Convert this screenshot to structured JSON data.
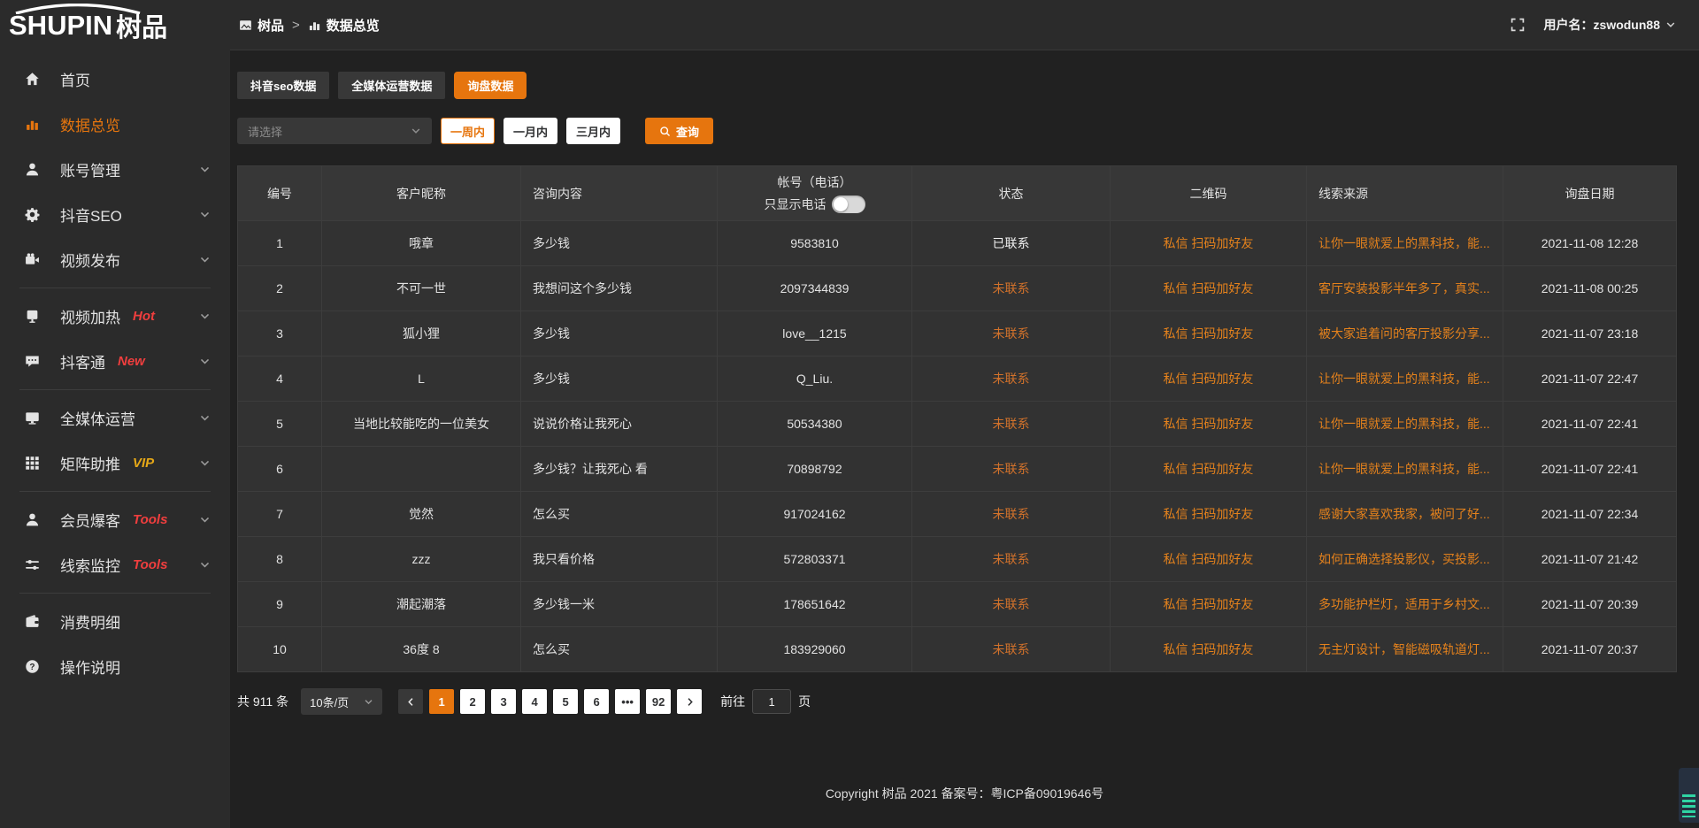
{
  "logo": {
    "en": "SHUPIN",
    "cn": "树品"
  },
  "colors": {
    "accent_orange": "#e6750e",
    "link_orange": "#e5821c",
    "status_uncontacted_orange": "#d2722b",
    "badge_red": "#f03e3e",
    "badge_gold": "#e6a817",
    "sidebar_bg": "#2b2b2b",
    "content_bg": "#212121",
    "table_bg": "#323232"
  },
  "header": {
    "breadcrumb_root": "树品",
    "breadcrumb_sep": ">",
    "breadcrumb_current": "数据总览",
    "user_label": "用户名：zswodun88"
  },
  "sidebar": {
    "items": [
      {
        "label": "首页",
        "icon": "home-icon",
        "active": false,
        "chevron": false,
        "badge": null,
        "divider_after": false
      },
      {
        "label": "数据总览",
        "icon": "bar-chart-icon",
        "active": true,
        "chevron": false,
        "badge": null,
        "divider_after": false
      },
      {
        "label": "账号管理",
        "icon": "user-icon",
        "active": false,
        "chevron": true,
        "badge": null,
        "divider_after": false
      },
      {
        "label": "抖音SEO",
        "icon": "gear-icon",
        "active": false,
        "chevron": true,
        "badge": null,
        "divider_after": false
      },
      {
        "label": "视频发布",
        "icon": "video-icon",
        "active": false,
        "chevron": true,
        "badge": null,
        "divider_after": true
      },
      {
        "label": "视频加热",
        "icon": "heat-icon",
        "active": false,
        "chevron": true,
        "badge": "Hot",
        "badge_color": "red",
        "divider_after": false
      },
      {
        "label": "抖客通",
        "icon": "chat-icon",
        "active": false,
        "chevron": true,
        "badge": "New",
        "badge_color": "red",
        "divider_after": true
      },
      {
        "label": "全媒体运营",
        "icon": "monitor-icon",
        "active": false,
        "chevron": true,
        "badge": null,
        "divider_after": false
      },
      {
        "label": "矩阵助推",
        "icon": "grid-icon",
        "active": false,
        "chevron": true,
        "badge": "VIP",
        "badge_color": "gold",
        "divider_after": true
      },
      {
        "label": "会员爆客",
        "icon": "member-icon",
        "active": false,
        "chevron": true,
        "badge": "Tools",
        "badge_color": "red",
        "divider_after": false
      },
      {
        "label": "线索监控",
        "icon": "sliders-icon",
        "active": false,
        "chevron": true,
        "badge": "Tools",
        "badge_color": "red",
        "divider_after": true
      },
      {
        "label": "消费明细",
        "icon": "wallet-icon",
        "active": false,
        "chevron": false,
        "badge": null,
        "divider_after": false
      },
      {
        "label": "操作说明",
        "icon": "question-icon",
        "active": false,
        "chevron": false,
        "badge": null,
        "divider_after": false
      }
    ]
  },
  "tabs": [
    {
      "label": "抖音seo数据",
      "active": false
    },
    {
      "label": "全媒体运营数据",
      "active": false
    },
    {
      "label": "询盘数据",
      "active": true
    }
  ],
  "filters": {
    "select_placeholder": "请选择",
    "ranges": [
      {
        "label": "一周内",
        "active": true
      },
      {
        "label": "一月内",
        "active": false
      },
      {
        "label": "三月内",
        "active": false
      }
    ],
    "query_label": "查询"
  },
  "table": {
    "headers": [
      "编号",
      "客户昵称",
      "咨询内容",
      "帐号（电话）",
      "状态",
      "二维码",
      "线索来源",
      "询盘日期"
    ],
    "phone_toggle_label": "只显示电话",
    "rows": [
      {
        "id": "1",
        "nickname": "哦章",
        "content": "多少钱",
        "account": "9583810",
        "status": "已联系",
        "contacted": true,
        "qr": "私信 扫码加好友",
        "source": "让你一眼就爱上的黑科技，能...",
        "date": "2021-11-08 12:28"
      },
      {
        "id": "2",
        "nickname": "不可一世",
        "content": "我想问这个多少钱",
        "account": "2097344839",
        "status": "未联系",
        "contacted": false,
        "qr": "私信 扫码加好友",
        "source": "客厅安装投影半年多了，真实...",
        "date": "2021-11-08 00:25"
      },
      {
        "id": "3",
        "nickname": "狐小狸",
        "content": "多少钱",
        "account": "love__1215",
        "status": "未联系",
        "contacted": false,
        "qr": "私信 扫码加好友",
        "source": "被大家追着问的客厅投影分享...",
        "date": "2021-11-07 23:18"
      },
      {
        "id": "4",
        "nickname": "L",
        "content": "多少钱",
        "account": "Q_Liu.",
        "status": "未联系",
        "contacted": false,
        "qr": "私信 扫码加好友",
        "source": "让你一眼就爱上的黑科技，能...",
        "date": "2021-11-07 22:47"
      },
      {
        "id": "5",
        "nickname": "当地比较能吃的一位美女",
        "content": "说说价格让我死心",
        "account": "50534380",
        "status": "未联系",
        "contacted": false,
        "qr": "私信 扫码加好友",
        "source": "让你一眼就爱上的黑科技，能...",
        "date": "2021-11-07 22:41"
      },
      {
        "id": "6",
        "nickname": "",
        "content": "多少钱？让我死心 看",
        "account": "70898792",
        "status": "未联系",
        "contacted": false,
        "qr": "私信 扫码加好友",
        "source": "让你一眼就爱上的黑科技，能...",
        "date": "2021-11-07 22:41"
      },
      {
        "id": "7",
        "nickname": "觉然",
        "content": "怎么买",
        "account": "917024162",
        "status": "未联系",
        "contacted": false,
        "qr": "私信 扫码加好友",
        "source": "感谢大家喜欢我家，被问了好...",
        "date": "2021-11-07 22:34"
      },
      {
        "id": "8",
        "nickname": "zzz",
        "content": "我只看价格",
        "account": "572803371",
        "status": "未联系",
        "contacted": false,
        "qr": "私信 扫码加好友",
        "source": "如何正确选择投影仪，买投影...",
        "date": "2021-11-07 21:42"
      },
      {
        "id": "9",
        "nickname": "潮起潮落",
        "content": "多少钱一米",
        "account": "178651642",
        "status": "未联系",
        "contacted": false,
        "qr": "私信 扫码加好友",
        "source": "多功能护栏灯，适用于乡村文...",
        "date": "2021-11-07 20:39"
      },
      {
        "id": "10",
        "nickname": "36度 8",
        "content": "怎么买",
        "account": "183929060",
        "status": "未联系",
        "contacted": false,
        "qr": "私信 扫码加好友",
        "source": "无主灯设计，智能磁吸轨道灯...",
        "date": "2021-11-07 20:37"
      }
    ]
  },
  "pagination": {
    "total": "共 911 条",
    "page_size": "10条/页",
    "pages": [
      "1",
      "2",
      "3",
      "4",
      "5",
      "6",
      "•••",
      "92"
    ],
    "active_page": "1",
    "goto_label": "前往",
    "goto_value": "1",
    "goto_unit": "页"
  },
  "footer": {
    "copyright": "Copyright 树品 2021 备案号：粤ICP备09019646号"
  }
}
